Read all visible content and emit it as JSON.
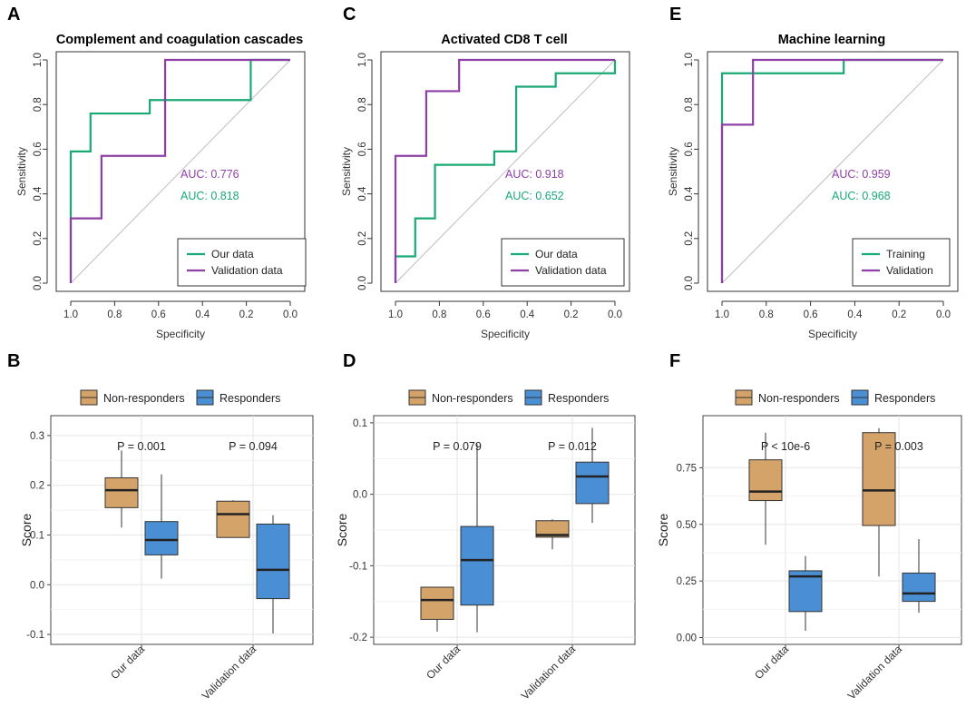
{
  "colors": {
    "green": "#19a974",
    "purple": "#8e3fa6",
    "tan": "#d4a36a",
    "blue": "#4a8fd4",
    "grid": "#e6e6e6",
    "diag": "#bdbdbd"
  },
  "chart_data": [
    {
      "id": "A",
      "panel": "A",
      "type": "line",
      "kind": "roc",
      "title": "Complement and coagulation cascades",
      "xlabel": "Specificity",
      "ylabel": "Sensitivity",
      "xlim": [
        1.0,
        0.0
      ],
      "ylim": [
        0.0,
        1.0
      ],
      "ticks": [
        "0.0",
        "0.2",
        "0.4",
        "0.6",
        "0.8",
        "1.0"
      ],
      "series": [
        {
          "name": "Our data",
          "color": "green",
          "auc": "AUC: 0.818",
          "x": [
            1.0,
            1.0,
            0.91,
            0.91,
            0.64,
            0.64,
            0.18,
            0.18,
            0.0
          ],
          "y": [
            0.0,
            0.59,
            0.59,
            0.76,
            0.76,
            0.82,
            0.82,
            1.0,
            1.0
          ]
        },
        {
          "name": "Validation data",
          "color": "purple",
          "auc": "AUC: 0.776",
          "x": [
            1.0,
            1.0,
            0.86,
            0.86,
            0.57,
            0.57,
            0.0
          ],
          "y": [
            0.0,
            0.29,
            0.29,
            0.57,
            0.57,
            1.0,
            1.0
          ]
        }
      ]
    },
    {
      "id": "C",
      "panel": "C",
      "type": "line",
      "kind": "roc",
      "title": "Activated CD8 T cell",
      "xlabel": "Specificity",
      "ylabel": "Sensitivity",
      "xlim": [
        1.0,
        0.0
      ],
      "ylim": [
        0.0,
        1.0
      ],
      "ticks": [
        "0.0",
        "0.2",
        "0.4",
        "0.6",
        "0.8",
        "1.0"
      ],
      "series": [
        {
          "name": "Our data",
          "color": "green",
          "auc": "AUC: 0.652",
          "x": [
            1.0,
            1.0,
            0.91,
            0.91,
            0.82,
            0.82,
            0.55,
            0.55,
            0.45,
            0.45,
            0.27,
            0.27,
            0.0,
            0.0
          ],
          "y": [
            0.0,
            0.12,
            0.12,
            0.29,
            0.29,
            0.53,
            0.53,
            0.59,
            0.59,
            0.88,
            0.88,
            0.94,
            0.94,
            1.0
          ]
        },
        {
          "name": "Validation data",
          "color": "purple",
          "auc": "AUC: 0.918",
          "x": [
            1.0,
            1.0,
            0.86,
            0.86,
            0.71,
            0.71,
            0.0
          ],
          "y": [
            0.0,
            0.57,
            0.57,
            0.86,
            0.86,
            1.0,
            1.0
          ]
        }
      ]
    },
    {
      "id": "E",
      "panel": "E",
      "type": "line",
      "kind": "roc",
      "title": "Machine learning",
      "xlabel": "Specificity",
      "ylabel": "Sensitivity",
      "xlim": [
        1.0,
        0.0
      ],
      "ylim": [
        0.0,
        1.0
      ],
      "ticks": [
        "0.0",
        "0.2",
        "0.4",
        "0.6",
        "0.8",
        "1.0"
      ],
      "series": [
        {
          "name": "Training",
          "color": "green",
          "auc": "AUC: 0.968",
          "x": [
            1.0,
            1.0,
            0.45,
            0.45,
            0.0
          ],
          "y": [
            0.0,
            0.94,
            0.94,
            1.0,
            1.0
          ]
        },
        {
          "name": "Validation",
          "color": "purple",
          "auc": "AUC: 0.959",
          "x": [
            1.0,
            1.0,
            0.86,
            0.86,
            0.0
          ],
          "y": [
            0.0,
            0.71,
            0.71,
            1.0,
            1.0
          ]
        }
      ]
    },
    {
      "id": "B",
      "panel": "B",
      "type": "box",
      "ylabel": "Score",
      "ylim": [
        -0.12,
        0.34
      ],
      "yticks": [
        -0.1,
        0.0,
        0.1,
        0.2,
        0.3
      ],
      "ytick_labels": [
        "-0.1",
        "0.0",
        "0.1",
        "0.2",
        "0.3"
      ],
      "categories": [
        "Our data",
        "Validation data"
      ],
      "legend": [
        "Non-responders",
        "Responders"
      ],
      "pvalues": [
        "P = 0.001",
        "P = 0.094"
      ],
      "boxes": [
        {
          "group": 0,
          "series": 0,
          "min": 0.115,
          "q1": 0.155,
          "median": 0.19,
          "q3": 0.215,
          "max": 0.27
        },
        {
          "group": 0,
          "series": 1,
          "min": 0.012,
          "q1": 0.06,
          "median": 0.09,
          "q3": 0.127,
          "max": 0.222
        },
        {
          "group": 1,
          "series": 0,
          "min": 0.095,
          "q1": 0.095,
          "median": 0.142,
          "q3": 0.168,
          "max": 0.17
        },
        {
          "group": 1,
          "series": 1,
          "min": -0.098,
          "q1": -0.028,
          "median": 0.03,
          "q3": 0.122,
          "max": 0.14
        }
      ]
    },
    {
      "id": "D",
      "panel": "D",
      "type": "box",
      "ylabel": "Score",
      "ylim": [
        -0.21,
        0.11
      ],
      "yticks": [
        -0.2,
        -0.1,
        0.0,
        0.1
      ],
      "ytick_labels": [
        "-0.2",
        "-0.1",
        "0.0",
        "0.1"
      ],
      "categories": [
        "Our data",
        "Validation data"
      ],
      "legend": [
        "Non-responders",
        "Responders"
      ],
      "pvalues": [
        "P = 0.079",
        "P = 0.012"
      ],
      "boxes": [
        {
          "group": 0,
          "series": 0,
          "min": -0.192,
          "q1": -0.175,
          "median": -0.148,
          "q3": -0.13,
          "max": -0.13
        },
        {
          "group": 0,
          "series": 1,
          "min": -0.193,
          "q1": -0.155,
          "median": -0.092,
          "q3": -0.045,
          "max": 0.07
        },
        {
          "group": 1,
          "series": 0,
          "min": -0.077,
          "q1": -0.06,
          "median": -0.057,
          "q3": -0.037,
          "max": -0.035
        },
        {
          "group": 1,
          "series": 1,
          "min": -0.04,
          "q1": -0.013,
          "median": 0.025,
          "q3": 0.045,
          "max": 0.093
        }
      ]
    },
    {
      "id": "F",
      "panel": "F",
      "type": "box",
      "ylabel": "Score",
      "ylim": [
        -0.03,
        0.98
      ],
      "yticks": [
        0.0,
        0.25,
        0.5,
        0.75
      ],
      "ytick_labels": [
        "0.00",
        "0.25",
        "0.50",
        "0.75"
      ],
      "categories": [
        "Our data",
        "Validation data"
      ],
      "legend": [
        "Non-responders",
        "Responders"
      ],
      "pvalues": [
        "P < 10e-6",
        "P = 0.003"
      ],
      "boxes": [
        {
          "group": 0,
          "series": 0,
          "min": 0.41,
          "q1": 0.605,
          "median": 0.645,
          "q3": 0.785,
          "max": 0.905
        },
        {
          "group": 0,
          "series": 1,
          "min": 0.03,
          "q1": 0.115,
          "median": 0.27,
          "q3": 0.295,
          "max": 0.36
        },
        {
          "group": 1,
          "series": 0,
          "min": 0.27,
          "q1": 0.495,
          "median": 0.65,
          "q3": 0.905,
          "max": 0.925
        },
        {
          "group": 1,
          "series": 1,
          "min": 0.11,
          "q1": 0.16,
          "median": 0.195,
          "q3": 0.285,
          "max": 0.435
        }
      ]
    }
  ]
}
